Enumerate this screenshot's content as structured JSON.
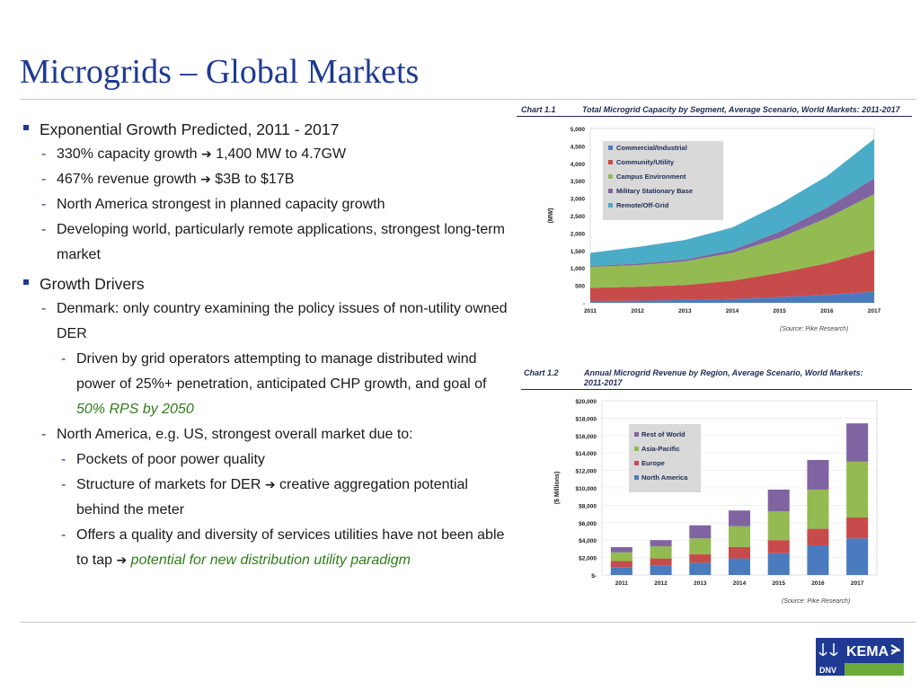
{
  "slide": {
    "title": "Microgrids – Global Markets"
  },
  "bullets": {
    "b1": "Exponential Growth Predicted, 2011 - 2017",
    "b1_items": [
      {
        "pre": "330% capacity growth ",
        "post": " 1,400 MW to 4.7GW"
      },
      {
        "pre": "467% revenue growth ",
        "post": " $3B to $17B"
      }
    ],
    "b1_item3": "North America strongest in planned capacity growth",
    "b1_item4": "Developing world, particularly remote applications, strongest long-term market",
    "b2": "Growth Drivers",
    "b2_item1": "Denmark: only country examining the policy issues of non-utility owned DER",
    "b2_item1_sub": "Driven by grid operators attempting to manage distributed wind power of 25%+ penetration, anticipated CHP growth, and goal of ",
    "b2_item1_sub_green": "50% RPS by 2050",
    "b2_item2": "North America, e.g. US, strongest overall market due to:",
    "b2_item2_sub1": "Pockets of poor power quality",
    "b2_item2_sub2_pre": "Structure of markets for DER ",
    "b2_item2_sub2_post": " creative aggregation potential behind the meter",
    "b2_item2_sub3_pre": "Offers a quality and diversity of services utilities have not been able to tap ",
    "b2_item2_sub3_green": "potential for new distribution utility paradigm",
    "arrow": "➔"
  },
  "chart1_head": {
    "num": "Chart 1.1",
    "title": "Total Microgrid Capacity by Segment, Average Scenario, World Markets: 2011-2017",
    "source": "(Source: Pike Research)"
  },
  "chart2_head": {
    "num": "Chart 1.2",
    "title_l1": "Annual Microgrid Revenue by Region, Average Scenario, World Markets:",
    "title_l2": "2011-2017",
    "source": "(Source: Pike Research)"
  },
  "logo": {
    "text": "KEMA",
    "sub": "DNV"
  },
  "chart_data": [
    {
      "type": "area",
      "stacked": true,
      "ylabel": "(MW)",
      "ylim": [
        0,
        5000
      ],
      "yticks": [
        "-",
        "500",
        "1,000",
        "1,500",
        "2,000",
        "2,500",
        "3,000",
        "3,500",
        "4,000",
        "4,500",
        "5,000"
      ],
      "categories": [
        "2011",
        "2012",
        "2013",
        "2014",
        "2015",
        "2016",
        "2017"
      ],
      "legend_position": "top-left",
      "series": [
        {
          "name": "Commercial/Industrial",
          "color": "#4a7bbf",
          "values": [
            50,
            60,
            80,
            110,
            160,
            230,
            320
          ]
        },
        {
          "name": "Community/Utility",
          "color": "#c84b4b",
          "values": [
            380,
            400,
            430,
            520,
            700,
            900,
            1200
          ]
        },
        {
          "name": "Campus Environment",
          "color": "#93bb52",
          "values": [
            600,
            620,
            680,
            800,
            1000,
            1300,
            1600
          ]
        },
        {
          "name": "Military Stationary Base",
          "color": "#8064a2",
          "values": [
            30,
            40,
            50,
            80,
            180,
            300,
            450
          ]
        },
        {
          "name": "Remote/Off-Grid",
          "color": "#4aacc6",
          "values": [
            370,
            480,
            560,
            650,
            790,
            900,
            1130
          ]
        }
      ]
    },
    {
      "type": "bar",
      "stacked": true,
      "ylabel": "($ Millions)",
      "ylim": [
        0,
        20000
      ],
      "yticks": [
        "$-",
        "$2,000",
        "$4,000",
        "$6,000",
        "$8,000",
        "$10,000",
        "$12,000",
        "$14,000",
        "$16,000",
        "$18,000",
        "$20,000"
      ],
      "categories": [
        "2011",
        "2012",
        "2013",
        "2014",
        "2015",
        "2016",
        "2017"
      ],
      "legend_position": "top-left",
      "series": [
        {
          "name": "North America",
          "color": "#4a7bbf",
          "values": [
            900,
            1100,
            1400,
            1900,
            2500,
            3400,
            4200
          ]
        },
        {
          "name": "Europe",
          "color": "#c84b4b",
          "values": [
            700,
            800,
            1000,
            1300,
            1500,
            1900,
            2400
          ]
        },
        {
          "name": "Asia-Pacific",
          "color": "#93bb52",
          "values": [
            1000,
            1400,
            1800,
            2400,
            3300,
            4500,
            6400
          ]
        },
        {
          "name": "Rest of World",
          "color": "#8064a2",
          "values": [
            600,
            700,
            1500,
            1800,
            2500,
            3400,
            4400
          ]
        }
      ]
    }
  ]
}
